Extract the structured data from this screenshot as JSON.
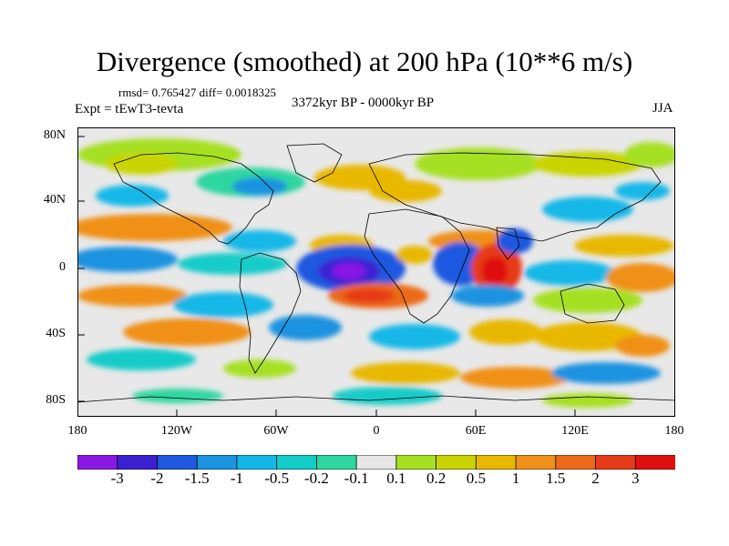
{
  "title": "Divergence (smoothed) at 200 hPa (10**6 m/s)",
  "stats": "rmsd= 0.765427 diff= 0.0018325",
  "experiment": "Expt = tEwT3-tevta",
  "period": "3372kyr BP - 0000kyr BP",
  "season": "JJA",
  "y_axis": {
    "ticks": [
      "80N",
      "40N",
      "0",
      "40S",
      "80S"
    ]
  },
  "x_axis": {
    "ticks": [
      "180",
      "120W",
      "60W",
      "0",
      "60E",
      "120E",
      "180"
    ]
  },
  "colorbar": {
    "labels": [
      "-3",
      "-2",
      "-1.5",
      "-1",
      "-0.5",
      "-0.2",
      "-0.1",
      "0.1",
      "0.2",
      "0.5",
      "1",
      "1.5",
      "2",
      "3"
    ],
    "colors": [
      "#8b19e6",
      "#3b20d2",
      "#1e58e0",
      "#1a93e0",
      "#14b8e8",
      "#12ccc8",
      "#2ed6a0",
      "#e6e6e6",
      "#a6e020",
      "#c9d400",
      "#e8b800",
      "#f09018",
      "#ec6a18",
      "#e63a18",
      "#e01010"
    ]
  },
  "colors": {
    "land_fill": "#e8e8e8",
    "coastline": "#000000"
  }
}
